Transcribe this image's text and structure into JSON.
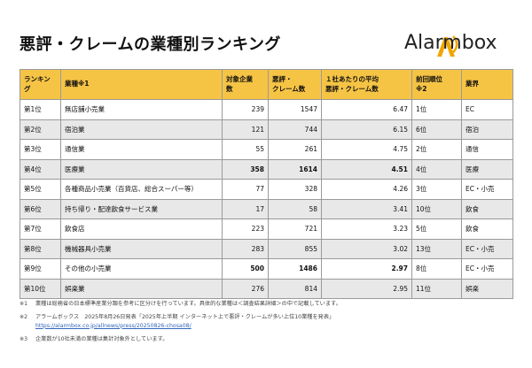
{
  "header": {
    "title": "悪評・クレームの業種別ランキング",
    "logo": "Alarmbox"
  },
  "table": {
    "columns": [
      "ランキング",
      "業種※1",
      "対象企業\n数",
      "悪評・\nクレーム数",
      "１社あたりの平均\n悪評・クレーム数",
      "前回順位\n※2",
      "業界"
    ],
    "rows": [
      [
        "第1位",
        "無店舗小売業",
        239,
        1547,
        6.47,
        "1位",
        "EC"
      ],
      [
        "第2位",
        "宿泊業",
        121,
        744,
        6.15,
        "6位",
        "宿泊"
      ],
      [
        "第3位",
        "通信業",
        55,
        261,
        4.75,
        "2位",
        "通信"
      ],
      [
        "第4位",
        "医療業",
        358,
        1614,
        4.51,
        "4位",
        "医療"
      ],
      [
        "第5位",
        "各種商品小売業（百貨店、総合スーパー等）",
        77,
        328,
        4.26,
        "3位",
        "EC・小売"
      ],
      [
        "第6位",
        "持ち帰り・配達飲食サービス業",
        17,
        58,
        3.41,
        "10位",
        "飲食"
      ],
      [
        "第7位",
        "飲食店",
        223,
        721,
        3.23,
        "5位",
        "飲食"
      ],
      [
        "第8位",
        "機械器具小売業",
        283,
        855,
        3.02,
        "13位",
        "EC・小売"
      ],
      [
        "第9位",
        "その他の小売業",
        500,
        1486,
        2.97,
        "8位",
        "EC・小売"
      ],
      [
        "第10位",
        "娯楽業",
        276,
        814,
        2.95,
        "11位",
        "娯楽"
      ]
    ]
  },
  "notes": [
    {
      "mark": "※1",
      "lines": [
        "業種は総務省の日本標準産業分類を参考に区分けを行っています。具体的な業種は＜調査結果詳細＞の中で記載しています。"
      ]
    },
    {
      "mark": "※2",
      "lines": [
        "アラームボックス　2025年8月26日発表「2025年上半期 インターネット上で悪評・クレームが多い上位10業種を発表」",
        "https://alarmbox.co.jp/allnews/press/20250826-chosa08/"
      ]
    },
    {
      "mark": "※3",
      "lines": [
        "企業数が10社未満の業種は集計対象外としています。"
      ]
    }
  ]
}
